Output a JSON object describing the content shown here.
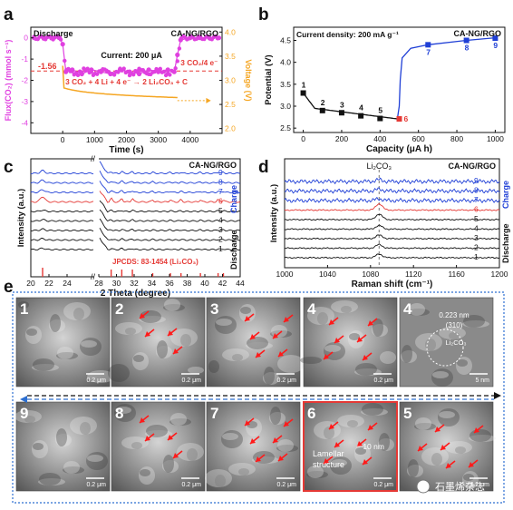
{
  "colors": {
    "magenta": "#e040e0",
    "orange": "#f5a623",
    "red_dash": "#e53935",
    "blue": "#1f3fd6",
    "red": "#e53935",
    "black": "#111111",
    "frame_blue": "#2c6fd1",
    "highlight_red": "#e53935"
  },
  "panel_a": {
    "letter": "a",
    "label_discharge": "Discharge",
    "label_sample": "CA-NG/RGO",
    "label_current": "Current: 200 μA",
    "label_value": "-1.56",
    "label_reaction": "3 CO₂ + 4 Li + 4 e⁻ → 2 Li₂CO₃ + C",
    "label_ratio": "3 CO₂/4 e⁻",
    "xlabel": "Time (s)",
    "ylabel_left": "Flux(CO₂) (mmol s⁻¹)",
    "ylabel_right": "Voltage (V)",
    "x_ticks": [
      "0",
      "1000",
      "2000",
      "3000",
      "4000"
    ],
    "y_ticks_left": [
      "0",
      "-1",
      "-2",
      "-3",
      "-4"
    ],
    "y_ticks_right": [
      "4.0",
      "3.5",
      "3.0",
      "2.5",
      "2.0"
    ]
  },
  "panel_b": {
    "letter": "b",
    "label_density": "Current density: 200 mA g⁻¹",
    "label_sample": "CA-NG/RGO",
    "xlabel": "Capacity (μA h)",
    "ylabel": "Potential (V)",
    "x_ticks": [
      "0",
      "200",
      "400",
      "600",
      "800",
      "1000"
    ],
    "y_ticks": [
      "4.5",
      "4.0",
      "3.5",
      "3.0",
      "2.5"
    ]
  },
  "panel_c": {
    "letter": "c",
    "label_sample": "CA-NG/RGO",
    "label_jcpds": "JPCDS: 83-1454 (Li₂CO₃)",
    "label_charge": "Charge",
    "label_discharge": "Discharge",
    "xlabel": "2 Theta (degree)",
    "ylabel": "Intensity (a.u.)",
    "x_ticks": [
      "20",
      "22",
      "24",
      "28",
      "30",
      "32",
      "34",
      "36",
      "38",
      "40",
      "42",
      "44"
    ],
    "curve_labels": [
      "9",
      "8",
      "7",
      "6",
      "5",
      "4",
      "3",
      "2",
      "1"
    ]
  },
  "panel_d": {
    "letter": "d",
    "label_sample": "CA-NG/RGO",
    "label_li2co3": "Li₂CO₃",
    "label_charge": "Charge",
    "label_discharge": "Discharge",
    "xlabel": "Raman shift (cm⁻¹)",
    "ylabel": "Intensity (a.u.)",
    "x_ticks": [
      "1000",
      "1040",
      "1080",
      "1120",
      "1160",
      "1200"
    ],
    "curve_labels": [
      "9",
      "8",
      "7",
      "6",
      "5",
      "4",
      "3",
      "2",
      "1"
    ]
  },
  "panel_e": {
    "letter": "e",
    "top_labels": [
      "1",
      "2",
      "3",
      "4",
      "4"
    ],
    "bottom_labels": [
      "9",
      "8",
      "7",
      "6",
      "5"
    ],
    "scale_bar": "0.2 μm",
    "scale_bar_tem": "5 nm",
    "tem_d": "0.223 nm",
    "tem_plane": "(310)",
    "tem_phase": "Li₂CO₃",
    "lamellar": "Lamellar structure",
    "thickness": "~ 10 nm",
    "watermark": "石墨烯杂志"
  },
  "chart_data": [
    {
      "type": "line",
      "title": "",
      "xlabel": "Time (s)",
      "ylabel": "Flux(CO₂) (mmol s⁻¹)",
      "y2label": "Voltage (V)",
      "xlim": [
        -1000,
        5000
      ],
      "ylim": [
        -4.5,
        0.5
      ],
      "y2lim": [
        1.9,
        4.1
      ],
      "series": [
        {
          "x": [
            -900,
            -600,
            -300,
            -100,
            0,
            100,
            300,
            600,
            900,
            1200,
            1500,
            1800,
            2100,
            2400,
            2700,
            3000,
            3300,
            3500,
            3600,
            3700,
            4000,
            4300,
            4600,
            4900
          ],
          "values": [
            0,
            0,
            0,
            0,
            -0.3,
            -1.6,
            -1.5,
            -1.7,
            -1.5,
            -1.6,
            -1.7,
            -1.5,
            -1.6,
            -1.7,
            -1.5,
            -1.6,
            -1.5,
            -1.6,
            -0.8,
            -0.1,
            0,
            0,
            0,
            0
          ]
        },
        {
          "x": [
            0,
            50,
            200,
            500,
            1000,
            1500,
            2000,
            2500,
            3000,
            3500
          ],
          "values": [
            3.3,
            2.9,
            2.75,
            2.7,
            2.68,
            2.66,
            2.64,
            2.62,
            2.6,
            2.55
          ]
        }
      ],
      "reference_lines": [
        {
          "y": -1.56,
          "label": "-1.56"
        }
      ]
    },
    {
      "type": "line",
      "title": "",
      "xlabel": "Capacity (μA h)",
      "ylabel": "Potential (V)",
      "xlim": [
        -50,
        1050
      ],
      "ylim": [
        2.4,
        4.8
      ],
      "series": [
        {
          "x": [
            0,
            100,
            200,
            300,
            400,
            500,
            650,
            850,
            1000
          ],
          "values": [
            3.3,
            2.9,
            2.85,
            2.78,
            2.72,
            2.71,
            4.4,
            4.5,
            4.55
          ]
        }
      ],
      "point_labels": [
        "1",
        "2",
        "3",
        "4",
        "5",
        "6",
        "7",
        "8",
        "9"
      ]
    },
    {
      "type": "line",
      "title": "",
      "xlabel": "2 Theta (degree)",
      "ylabel": "Intensity (a.u.)",
      "xlim": [
        20,
        44
      ],
      "series_labels": [
        "9",
        "8",
        "7",
        "6",
        "5",
        "4",
        "3",
        "2",
        "1"
      ],
      "reference_peaks": [
        21.3,
        29.4,
        30.6,
        31.8,
        34.1,
        36.1,
        37.3,
        39.5,
        41.5,
        42.1
      ]
    },
    {
      "type": "line",
      "title": "",
      "xlabel": "Raman shift (cm⁻¹)",
      "ylabel": "Intensity (a.u.)",
      "xlim": [
        1000,
        1200
      ],
      "peak": 1088,
      "series_labels": [
        "9",
        "8",
        "7",
        "6",
        "5",
        "4",
        "3",
        "2",
        "1"
      ]
    }
  ]
}
